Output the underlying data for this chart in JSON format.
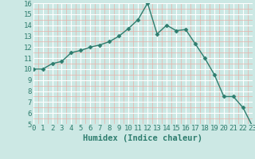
{
  "x": [
    0,
    1,
    2,
    3,
    4,
    5,
    6,
    7,
    8,
    9,
    10,
    11,
    12,
    13,
    14,
    15,
    16,
    17,
    18,
    19,
    20,
    21,
    22,
    23
  ],
  "y": [
    10,
    10,
    10.5,
    10.7,
    11.5,
    11.7,
    12.0,
    12.2,
    12.5,
    13.0,
    13.7,
    14.5,
    16.0,
    13.2,
    14.0,
    13.5,
    13.6,
    12.3,
    11.0,
    9.5,
    7.5,
    7.5,
    6.5,
    4.8
  ],
  "xlim": [
    0,
    23
  ],
  "ylim": [
    5,
    16
  ],
  "yticks": [
    5,
    6,
    7,
    8,
    9,
    10,
    11,
    12,
    13,
    14,
    15,
    16
  ],
  "xticks": [
    0,
    1,
    2,
    3,
    4,
    5,
    6,
    7,
    8,
    9,
    10,
    11,
    12,
    13,
    14,
    15,
    16,
    17,
    18,
    19,
    20,
    21,
    22,
    23
  ],
  "xlabel": "Humidex (Indice chaleur)",
  "line_color": "#2e7d6e",
  "marker": "D",
  "marker_size": 2.5,
  "bg_color": "#cce8e4",
  "plot_bg_color": "#cce8e4",
  "grid_major_color": "#ffffff",
  "grid_minor_color": "#e8b0a8",
  "tick_label_fontsize": 6.5,
  "xlabel_fontsize": 7.5
}
